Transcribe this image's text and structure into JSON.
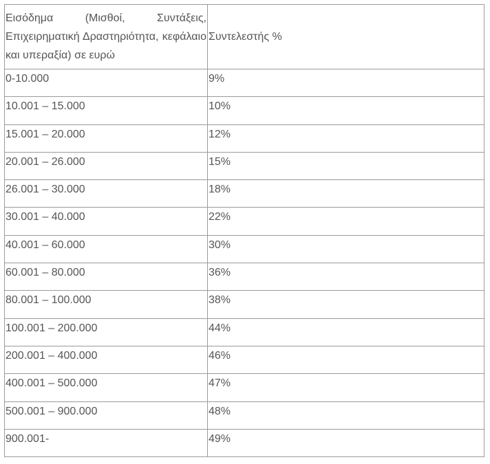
{
  "table": {
    "header": [
      "Εισόδημα (Μισθοί, Συντάξεις, Επιχειρηματική Δραστηριότητα, κεφάλαιο και υπεραξία) σε ευρώ",
      "Συντελεστής %"
    ],
    "rows": [
      [
        "0-10.000",
        "9%"
      ],
      [
        "10.001 – 15.000",
        "10%"
      ],
      [
        "15.001 – 20.000",
        "12%"
      ],
      [
        "20.001 – 26.000",
        "15%"
      ],
      [
        "26.001 – 30.000",
        "18%"
      ],
      [
        "30.001 – 40.000",
        "22%"
      ],
      [
        "40.001 – 60.000",
        "30%"
      ],
      [
        "60.001 – 80.000",
        "36%"
      ],
      [
        "80.001 – 100.000",
        "38%"
      ],
      [
        "100.001 – 200.000",
        "44%"
      ],
      [
        "200.001 – 400.000",
        "46%"
      ],
      [
        "400.001 – 500.000",
        "47%"
      ],
      [
        "500.001 – 900.000",
        "48%"
      ],
      [
        "900.001-",
        "49%"
      ]
    ]
  }
}
